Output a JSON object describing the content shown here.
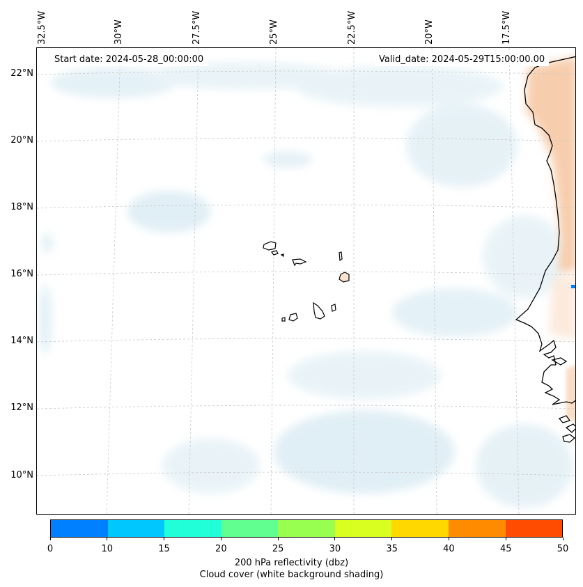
{
  "map": {
    "start_date_label": "Start date: 2024-05-28_00:00:00",
    "valid_date_label": "Valid_date: 2024-05-29T15:00:00.00",
    "lon_ticks": [
      "32.5°W",
      "30°W",
      "27.5°W",
      "25°W",
      "22.5°W",
      "20°W",
      "17.5°W"
    ],
    "lat_ticks": [
      "22°N",
      "20°N",
      "18°N",
      "16°N",
      "14°N",
      "12°N",
      "10°N"
    ],
    "extent": {
      "lon_min": -32.7,
      "lon_max": -15.5,
      "lat_min": 8.9,
      "lat_max": 22.8
    },
    "features": [
      "Cape Verde islands",
      "West African coastline",
      "cloud cover shading",
      "land shading"
    ]
  },
  "colorbar": {
    "ticks": [
      "0",
      "10",
      "15",
      "20",
      "25",
      "30",
      "35",
      "40",
      "45",
      "50"
    ],
    "colors": [
      "#0080ff",
      "#00c8ff",
      "#20ffd8",
      "#60ff90",
      "#98ff50",
      "#d8ff20",
      "#ffd800",
      "#ff8c00",
      "#ff4c00"
    ],
    "label_line1": "200 hPa reflectivity (dbz)",
    "label_line2": "Cloud cover (white background shading)"
  },
  "colors": {
    "cloud": "#d5e9f1",
    "land": "#f6c9a5",
    "coast": "#000000",
    "grid": "#c8c8c8"
  }
}
